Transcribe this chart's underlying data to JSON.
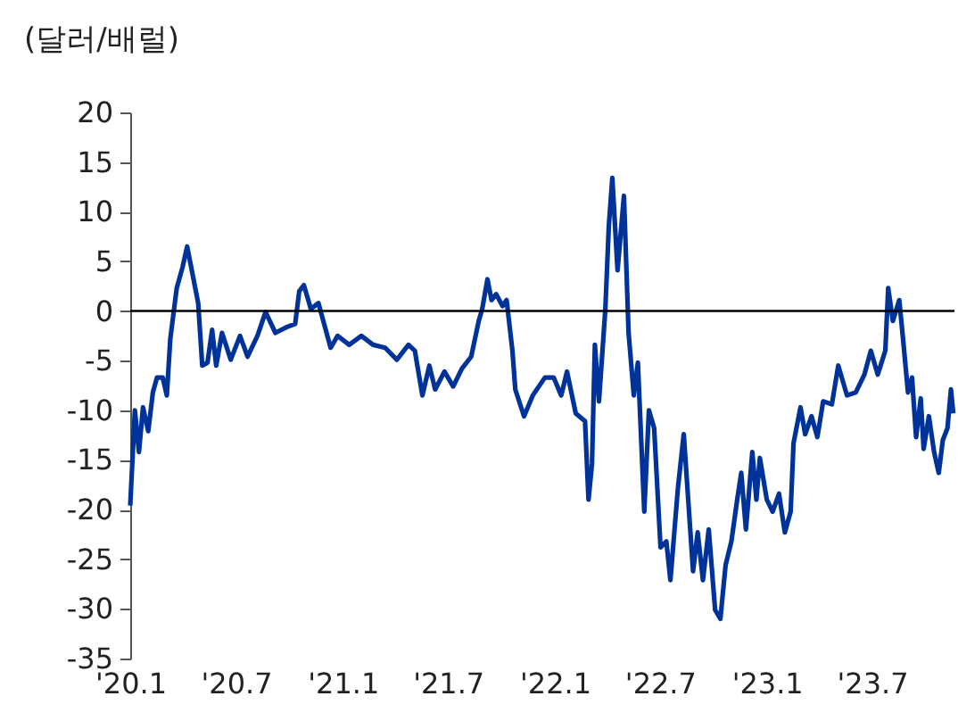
{
  "chart_data": {
    "type": "line",
    "ylabel": "(달러/배럴)",
    "x": [
      "2020-01-01",
      "2020-01-09",
      "2020-01-16",
      "2020-01-23",
      "2020-02-01",
      "2020-02-09",
      "2020-02-16",
      "2020-02-26",
      "2020-03-04",
      "2020-03-10",
      "2020-03-21",
      "2020-03-31",
      "2020-04-08",
      "2020-04-17",
      "2020-04-27",
      "2020-05-04",
      "2020-05-13",
      "2020-05-21",
      "2020-05-28",
      "2020-06-07",
      "2020-06-22",
      "2020-07-08",
      "2020-07-21",
      "2020-08-07",
      "2020-08-21",
      "2020-09-07",
      "2020-09-27",
      "2020-10-11",
      "2020-10-18",
      "2020-10-26",
      "2020-11-07",
      "2020-11-20",
      "2020-12-11",
      "2020-12-23",
      "2021-01-12",
      "2021-02-02",
      "2021-02-22",
      "2021-03-15",
      "2021-04-04",
      "2021-04-24",
      "2021-05-05",
      "2021-05-18",
      "2021-05-30",
      "2021-06-09",
      "2021-06-25",
      "2021-07-10",
      "2021-07-25",
      "2021-08-10",
      "2021-08-23",
      "2021-08-29",
      "2021-09-07",
      "2021-09-14",
      "2021-09-22",
      "2021-10-03",
      "2021-10-10",
      "2021-10-20",
      "2021-10-25",
      "2021-11-09",
      "2021-11-24",
      "2021-12-15",
      "2021-12-30",
      "2022-01-12",
      "2022-01-22",
      "2022-02-06",
      "2022-02-22",
      "2022-02-28",
      "2022-03-06",
      "2022-03-11",
      "2022-03-18",
      "2022-03-29",
      "2022-04-04",
      "2022-04-10",
      "2022-04-19",
      "2022-04-30",
      "2022-05-08",
      "2022-05-17",
      "2022-05-24",
      "2022-06-04",
      "2022-06-12",
      "2022-06-21",
      "2022-07-02",
      "2022-07-12",
      "2022-07-19",
      "2022-08-01",
      "2022-08-11",
      "2022-08-27",
      "2022-09-04",
      "2022-09-13",
      "2022-09-23",
      "2022-10-04",
      "2022-10-13",
      "2022-10-22",
      "2022-11-01",
      "2022-11-11",
      "2022-11-18",
      "2022-11-26",
      "2022-12-07",
      "2022-12-14",
      "2022-12-20",
      "2023-01-01",
      "2023-01-11",
      "2023-01-22",
      "2023-02-01",
      "2023-02-11",
      "2023-02-16",
      "2023-02-28",
      "2023-03-08",
      "2023-03-19",
      "2023-03-29",
      "2023-04-08",
      "2023-04-23",
      "2023-05-04",
      "2023-05-19",
      "2023-06-03",
      "2023-06-18",
      "2023-06-29",
      "2023-07-11",
      "2023-07-24",
      "2023-07-29",
      "2023-08-06",
      "2023-08-17",
      "2023-08-24",
      "2023-09-01",
      "2023-09-08",
      "2023-09-15",
      "2023-09-23",
      "2023-09-28",
      "2023-10-07",
      "2023-10-16",
      "2023-10-24",
      "2023-10-31",
      "2023-11-08",
      "2023-11-14",
      "2023-11-18"
    ],
    "series": [
      {
        "color": "#003399",
        "values": [
          -19.6,
          -10,
          -14.2,
          -9.7,
          -12.1,
          -8.2,
          -6.7,
          -6.7,
          -8.5,
          -2.8,
          2.3,
          4.4,
          6.5,
          3.8,
          0.8,
          -5.5,
          -5.2,
          -1.9,
          -5.5,
          -2.2,
          -4.9,
          -2.5,
          -4.6,
          -2.5,
          -0.1,
          -2.2,
          -1.6,
          -1.3,
          2.0,
          2.6,
          0.2,
          0.8,
          -3.7,
          -2.5,
          -3.4,
          -2.5,
          -3.4,
          -3.7,
          -4.9,
          -3.4,
          -4.0,
          -8.5,
          -5.5,
          -7.9,
          -6.1,
          -7.6,
          -5.8,
          -4.6,
          -1.0,
          0.2,
          3.2,
          1.1,
          1.7,
          0.5,
          1.1,
          -4.0,
          -7.9,
          -10.6,
          -8.5,
          -6.7,
          -6.7,
          -8.5,
          -6.1,
          -10.3,
          -11.1,
          -19.0,
          -15.4,
          -3.4,
          -9.1,
          0.2,
          8.6,
          13.4,
          4.1,
          11.6,
          -2.2,
          -8.5,
          -5.2,
          -20.2,
          -10,
          -11.8,
          -23.8,
          -23.2,
          -27.1,
          -17.8,
          -12.4,
          -26.2,
          -22.3,
          -27.1,
          -22.0,
          -30.1,
          -31.0,
          -25.6,
          -23.2,
          -19.0,
          -16.3,
          -22.0,
          -14.2,
          -19.0,
          -14.8,
          -19.0,
          -20.2,
          -18.4,
          -22.3,
          -20.2,
          -13.3,
          -9.7,
          -12.4,
          -10.6,
          -12.7,
          -9.1,
          -9.4,
          -5.5,
          -8.5,
          -8.2,
          -6.4,
          -4.0,
          -6.4,
          -4.0,
          2.3,
          -1.0,
          1.1,
          -3.1,
          -8.2,
          -6.7,
          -12.7,
          -8.8,
          -13.9,
          -10.6,
          -14.2,
          -16.3,
          -13.0,
          -11.8,
          -7.9,
          -10.3
        ]
      }
    ],
    "xlim": [
      "2020-01-01",
      "2023-11-20"
    ],
    "xticks": [
      {
        "value": "2020-01-01",
        "label": "'20.1"
      },
      {
        "value": "2020-07-01",
        "label": "'20.7"
      },
      {
        "value": "2021-01-01",
        "label": "'21.1"
      },
      {
        "value": "2021-07-01",
        "label": "'21.7"
      },
      {
        "value": "2022-01-01",
        "label": "'22.1"
      },
      {
        "value": "2022-07-01",
        "label": "'22.7"
      },
      {
        "value": "2023-01-01",
        "label": "'23.1"
      },
      {
        "value": "2023-07-01",
        "label": "'23.7"
      }
    ],
    "ylim": [
      -35,
      20
    ],
    "yticks": [
      -35,
      -30,
      -25,
      -20,
      -15,
      -10,
      -5,
      0,
      5,
      10,
      15,
      20
    ],
    "ref_lines": [
      {
        "axis": "y",
        "value": 0,
        "color": "#000000"
      }
    ],
    "grid": false,
    "line_style": "solid",
    "marker": "none"
  }
}
